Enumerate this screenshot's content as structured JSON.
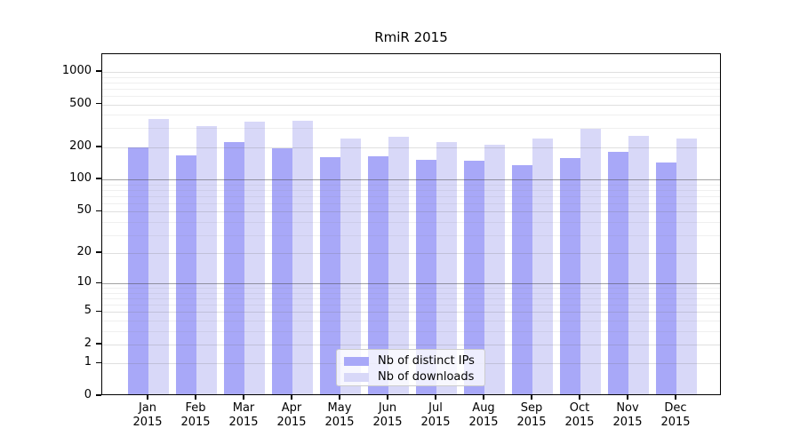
{
  "title": "RmiR 2015",
  "legend": {
    "items": [
      {
        "label": "Nb of distinct IPs",
        "color": "#a8a8f8"
      },
      {
        "label": "Nb of downloads",
        "color": "#d8d8f8"
      }
    ]
  },
  "chart_data": {
    "type": "bar",
    "title": "RmiR 2015",
    "categories": [
      "Jan 2015",
      "Feb 2015",
      "Mar 2015",
      "Apr 2015",
      "May 2015",
      "Jun 2015",
      "Jul 2015",
      "Aug 2015",
      "Sep 2015",
      "Oct 2015",
      "Nov 2015",
      "Dec 2015"
    ],
    "x_tick_months": [
      "Jan",
      "Feb",
      "Mar",
      "Apr",
      "May",
      "Jun",
      "Jul",
      "Aug",
      "Sep",
      "Oct",
      "Nov",
      "Dec"
    ],
    "x_tick_year": "2015",
    "series": [
      {
        "name": "Nb of distinct IPs",
        "color": "#a8a8f8",
        "values": [
          192,
          163,
          216,
          190,
          157,
          159,
          147,
          143,
          130,
          153,
          174,
          138
        ]
      },
      {
        "name": "Nb of downloads",
        "color": "#d8d8f8",
        "values": [
          353,
          303,
          335,
          339,
          232,
          241,
          215,
          202,
          233,
          288,
          246,
          233
        ]
      }
    ],
    "xlabel": "",
    "ylabel": "",
    "y_scale": "log1p (position proportional to log10(1+value))",
    "y_ticks": [
      0,
      1,
      2,
      5,
      10,
      20,
      50,
      100,
      200,
      500,
      1000
    ],
    "y_minor_gridlines": [
      3,
      4,
      6,
      7,
      8,
      9,
      30,
      40,
      60,
      70,
      80,
      90,
      300,
      400,
      600,
      700,
      800,
      900
    ],
    "y_emphasized_gridlines": [
      10,
      100
    ],
    "ylim": [
      0,
      1470
    ],
    "grid": "horizontal major+minor, drawn over bars",
    "legend_position": "lower center"
  }
}
